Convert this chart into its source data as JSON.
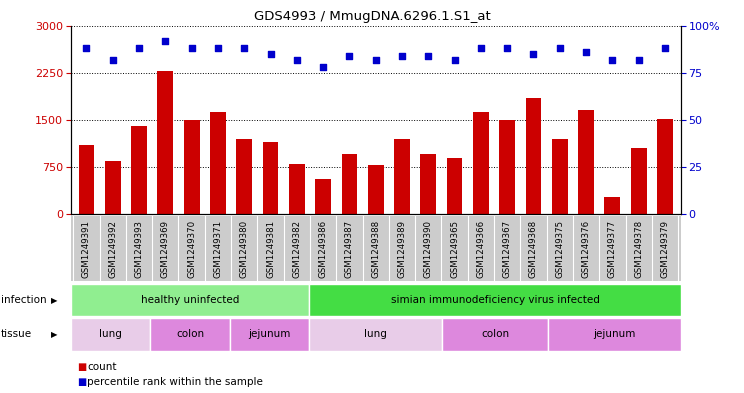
{
  "title": "GDS4993 / MmugDNA.6296.1.S1_at",
  "samples": [
    "GSM1249391",
    "GSM1249392",
    "GSM1249393",
    "GSM1249369",
    "GSM1249370",
    "GSM1249371",
    "GSM1249380",
    "GSM1249381",
    "GSM1249382",
    "GSM1249386",
    "GSM1249387",
    "GSM1249388",
    "GSM1249389",
    "GSM1249390",
    "GSM1249365",
    "GSM1249366",
    "GSM1249367",
    "GSM1249368",
    "GSM1249375",
    "GSM1249376",
    "GSM1249377",
    "GSM1249378",
    "GSM1249379"
  ],
  "counts": [
    1100,
    850,
    1400,
    2280,
    1490,
    1620,
    1200,
    1150,
    800,
    560,
    950,
    780,
    1200,
    950,
    900,
    1630,
    1500,
    1850,
    1200,
    1660,
    280,
    1050,
    1510
  ],
  "percentiles": [
    88,
    82,
    88,
    92,
    88,
    88,
    88,
    85,
    82,
    78,
    84,
    82,
    84,
    84,
    82,
    88,
    88,
    85,
    88,
    86,
    82,
    82,
    88
  ],
  "bar_color": "#cc0000",
  "dot_color": "#0000cc",
  "left_ylim": [
    0,
    3000
  ],
  "right_ylim": [
    0,
    100
  ],
  "left_yticks": [
    0,
    750,
    1500,
    2250,
    3000
  ],
  "right_yticks": [
    0,
    25,
    50,
    75,
    100
  ],
  "infection_groups": [
    {
      "label": "healthy uninfected",
      "start": 0,
      "end": 9,
      "color": "#90ee90"
    },
    {
      "label": "simian immunodeficiency virus infected",
      "start": 9,
      "end": 23,
      "color": "#44dd44"
    }
  ],
  "tissue_groups": [
    {
      "label": "lung",
      "start": 0,
      "end": 3,
      "color": "#e8cce8"
    },
    {
      "label": "colon",
      "start": 3,
      "end": 6,
      "color": "#dd88dd"
    },
    {
      "label": "jejunum",
      "start": 6,
      "end": 9,
      "color": "#dd88dd"
    },
    {
      "label": "lung",
      "start": 9,
      "end": 14,
      "color": "#e8cce8"
    },
    {
      "label": "colon",
      "start": 14,
      "end": 18,
      "color": "#dd88dd"
    },
    {
      "label": "jejunum",
      "start": 18,
      "end": 23,
      "color": "#dd88dd"
    }
  ],
  "xtick_bg": "#cccccc",
  "legend_count_color": "#cc0000",
  "legend_dot_color": "#0000cc"
}
